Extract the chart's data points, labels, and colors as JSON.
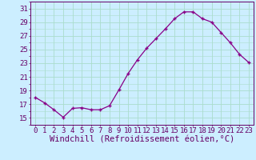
{
  "x": [
    0,
    1,
    2,
    3,
    4,
    5,
    6,
    7,
    8,
    9,
    10,
    11,
    12,
    13,
    14,
    15,
    16,
    17,
    18,
    19,
    20,
    21,
    22,
    23
  ],
  "y": [
    18.0,
    17.2,
    16.2,
    15.1,
    16.4,
    16.5,
    16.2,
    16.2,
    16.8,
    19.1,
    21.5,
    23.5,
    25.2,
    26.6,
    28.0,
    29.5,
    30.5,
    30.5,
    29.5,
    29.0,
    27.5,
    26.0,
    24.3,
    23.1
  ],
  "line_color": "#880088",
  "marker": "+",
  "bg_color": "#cceeff",
  "grid_color": "#aaddcc",
  "xlabel": "Windchill (Refroidissement éolien,°C)",
  "ytick_labels": [
    15,
    17,
    19,
    21,
    23,
    25,
    27,
    29,
    31
  ],
  "xtick_labels": [
    0,
    1,
    2,
    3,
    4,
    5,
    6,
    7,
    8,
    9,
    10,
    11,
    12,
    13,
    14,
    15,
    16,
    17,
    18,
    19,
    20,
    21,
    22,
    23
  ],
  "ylim": [
    14.0,
    32.0
  ],
  "xlim": [
    -0.5,
    23.5
  ],
  "font_color": "#660066",
  "font_size": 6.5,
  "xlabel_fontsize": 7.5
}
